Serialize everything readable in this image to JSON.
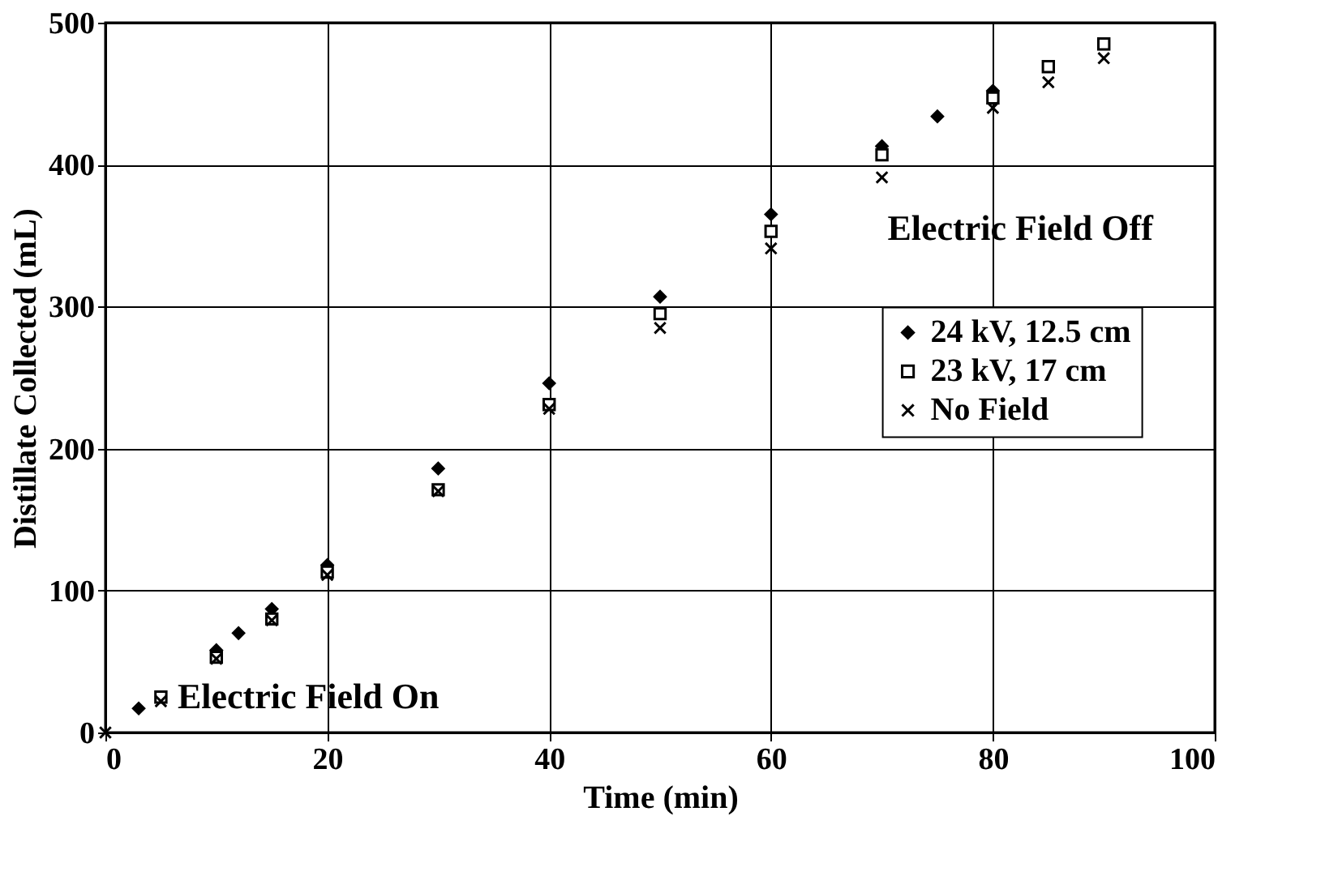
{
  "chart_data": {
    "type": "scatter",
    "xlabel": "Time (min)",
    "ylabel": "Distillate Collected (mL)",
    "xlim": [
      0,
      100
    ],
    "xticks": [
      0,
      20,
      40,
      60,
      80,
      100
    ],
    "ylim": [
      0,
      500
    ],
    "yticks": [
      0,
      100,
      200,
      300,
      400,
      500
    ],
    "grid": true,
    "legend": "right",
    "series": [
      {
        "name": "24 kV, 12.5 cm",
        "color": "#000000",
        "marker": "diamond",
        "x": [
          3,
          5,
          10,
          12,
          15,
          20,
          30,
          40,
          50,
          60,
          70,
          75,
          80
        ],
        "values": [
          17,
          null,
          58,
          70,
          87,
          118,
          186,
          246,
          307,
          365,
          413,
          434,
          452
        ]
      },
      {
        "name": "23  kV, 17 cm",
        "color": "#000000",
        "marker": "square",
        "x": [
          5,
          10,
          15,
          20,
          30,
          40,
          50,
          60,
          70,
          80,
          85,
          90
        ],
        "values": [
          25,
          53,
          80,
          113,
          171,
          231,
          295,
          353,
          407,
          447,
          469,
          485
        ]
      },
      {
        "name": "No Field",
        "color": "#000000",
        "marker": "cross",
        "x": [
          0,
          5,
          10,
          15,
          20,
          30,
          40,
          50,
          60,
          70,
          80,
          85,
          90
        ],
        "values": [
          0,
          22,
          52,
          79,
          111,
          170,
          228,
          285,
          341,
          391,
          440,
          458,
          475
        ]
      }
    ],
    "annotations": [
      "Electric Field On",
      "Electric Field Off"
    ]
  }
}
